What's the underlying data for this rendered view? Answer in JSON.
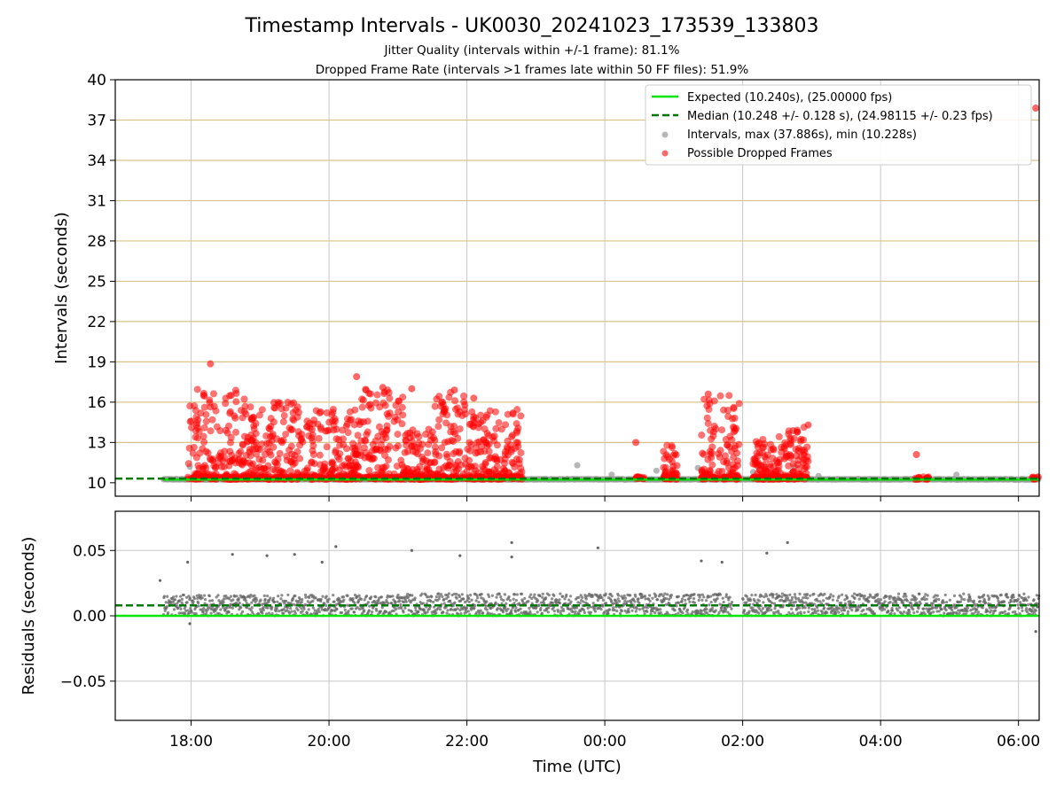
{
  "title": "Timestamp Intervals - UK0030_20241023_173539_133803",
  "subtitle_1": "Jitter Quality (intervals within +/-1 frame): 81.1%",
  "subtitle_2": "Dropped Frame Rate (intervals >1 frames late within 50 FF files): 51.9%",
  "colors": {
    "expected": "#00e600",
    "median": "#007700",
    "intervals": "#999999",
    "dropped": "#ff0000",
    "residual_points": "#666666",
    "grid": "#c8c8c8",
    "hgrid_top": "#d9c48a"
  },
  "chart_data": [
    {
      "type": "scatter",
      "ylabel": "Intervals (seconds)",
      "ylim": [
        9,
        40
      ],
      "xlim_hours": [
        16.9,
        30.3
      ],
      "yticks": [
        "10",
        "13",
        "16",
        "19",
        "22",
        "25",
        "28",
        "31",
        "34",
        "37",
        "40"
      ],
      "grid": true,
      "legend_placement": "top-right",
      "legend": [
        "Expected (10.240s), (25.00000 fps)",
        "Median (10.248 +/- 0.128 s), (24.98115 +/- 0.23 fps)",
        "Intervals, max (37.886s), min (10.228s)",
        "Possible Dropped Frames"
      ],
      "expected_interval": 10.24,
      "median_interval": 10.248,
      "max_interval": 37.886,
      "min_interval": 10.228,
      "data_start_hour": 17.6,
      "data_end_hour": 30.3,
      "dropped_clusters": [
        {
          "start": 17.95,
          "end": 18.8,
          "max": 17.0
        },
        {
          "start": 18.8,
          "end": 19.7,
          "max": 16.0
        },
        {
          "start": 19.7,
          "end": 20.4,
          "max": 15.5
        },
        {
          "start": 20.4,
          "end": 21.1,
          "max": 17.0
        },
        {
          "start": 21.1,
          "end": 21.5,
          "max": 14.0
        },
        {
          "start": 21.5,
          "end": 22.0,
          "max": 16.8
        },
        {
          "start": 22.0,
          "end": 22.8,
          "max": 15.5
        },
        {
          "start": 24.45,
          "end": 24.6,
          "max": 10.4
        },
        {
          "start": 24.85,
          "end": 25.05,
          "max": 12.8
        },
        {
          "start": 25.4,
          "end": 25.95,
          "max": 16.5
        },
        {
          "start": 26.15,
          "end": 26.5,
          "max": 13.5
        },
        {
          "start": 26.5,
          "end": 26.95,
          "max": 14.2
        },
        {
          "start": 28.5,
          "end": 28.7,
          "max": 10.4
        },
        {
          "start": 30.2,
          "end": 30.3,
          "max": 10.4
        }
      ],
      "highlight_points": [
        {
          "x": 18.28,
          "y": 18.85
        },
        {
          "x": 20.4,
          "y": 17.9
        },
        {
          "x": 20.78,
          "y": 17.1
        },
        {
          "x": 21.2,
          "y": 17.0
        },
        {
          "x": 21.82,
          "y": 16.9
        },
        {
          "x": 22.1,
          "y": 16.3
        },
        {
          "x": 25.5,
          "y": 16.6
        },
        {
          "x": 26.95,
          "y": 14.3
        },
        {
          "x": 28.52,
          "y": 12.1
        },
        {
          "x": 24.45,
          "y": 13.0
        },
        {
          "x": 30.25,
          "y": 37.886
        }
      ],
      "gray_outliers": [
        {
          "x": 17.98,
          "y": 11.2
        },
        {
          "x": 23.6,
          "y": 11.3
        },
        {
          "x": 24.1,
          "y": 10.6
        },
        {
          "x": 24.75,
          "y": 10.9
        },
        {
          "x": 25.35,
          "y": 11.1
        },
        {
          "x": 26.15,
          "y": 10.8
        },
        {
          "x": 26.75,
          "y": 11.2
        },
        {
          "x": 27.1,
          "y": 10.5
        },
        {
          "x": 29.1,
          "y": 10.6
        }
      ]
    },
    {
      "type": "scatter",
      "ylabel": "Residuals (seconds)",
      "xlabel": "Time (UTC)",
      "ylim": [
        -0.08,
        0.08
      ],
      "yticks": [
        "−0.05",
        "0.00",
        "0.05"
      ],
      "xticks": [
        "18:00",
        "20:00",
        "22:00",
        "00:00",
        "02:00",
        "04:00",
        "06:00"
      ],
      "xtick_hours": [
        18,
        20,
        22,
        24,
        26,
        28,
        30
      ],
      "grid": true,
      "expected_residual": 0.0,
      "median_residual": 0.008,
      "residual_band": [
        0.0,
        0.017
      ],
      "outliers": [
        {
          "x": 17.55,
          "y": 0.027
        },
        {
          "x": 17.95,
          "y": 0.041
        },
        {
          "x": 17.98,
          "y": -0.006
        },
        {
          "x": 18.6,
          "y": 0.047
        },
        {
          "x": 19.1,
          "y": 0.046
        },
        {
          "x": 19.5,
          "y": 0.047
        },
        {
          "x": 19.9,
          "y": 0.041
        },
        {
          "x": 20.1,
          "y": 0.053
        },
        {
          "x": 21.2,
          "y": 0.05
        },
        {
          "x": 21.9,
          "y": 0.046
        },
        {
          "x": 22.65,
          "y": 0.056
        },
        {
          "x": 22.65,
          "y": 0.045
        },
        {
          "x": 23.9,
          "y": 0.052
        },
        {
          "x": 25.4,
          "y": 0.042
        },
        {
          "x": 25.7,
          "y": 0.041
        },
        {
          "x": 26.35,
          "y": 0.048
        },
        {
          "x": 26.65,
          "y": 0.056
        },
        {
          "x": 30.25,
          "y": -0.012
        }
      ]
    }
  ]
}
